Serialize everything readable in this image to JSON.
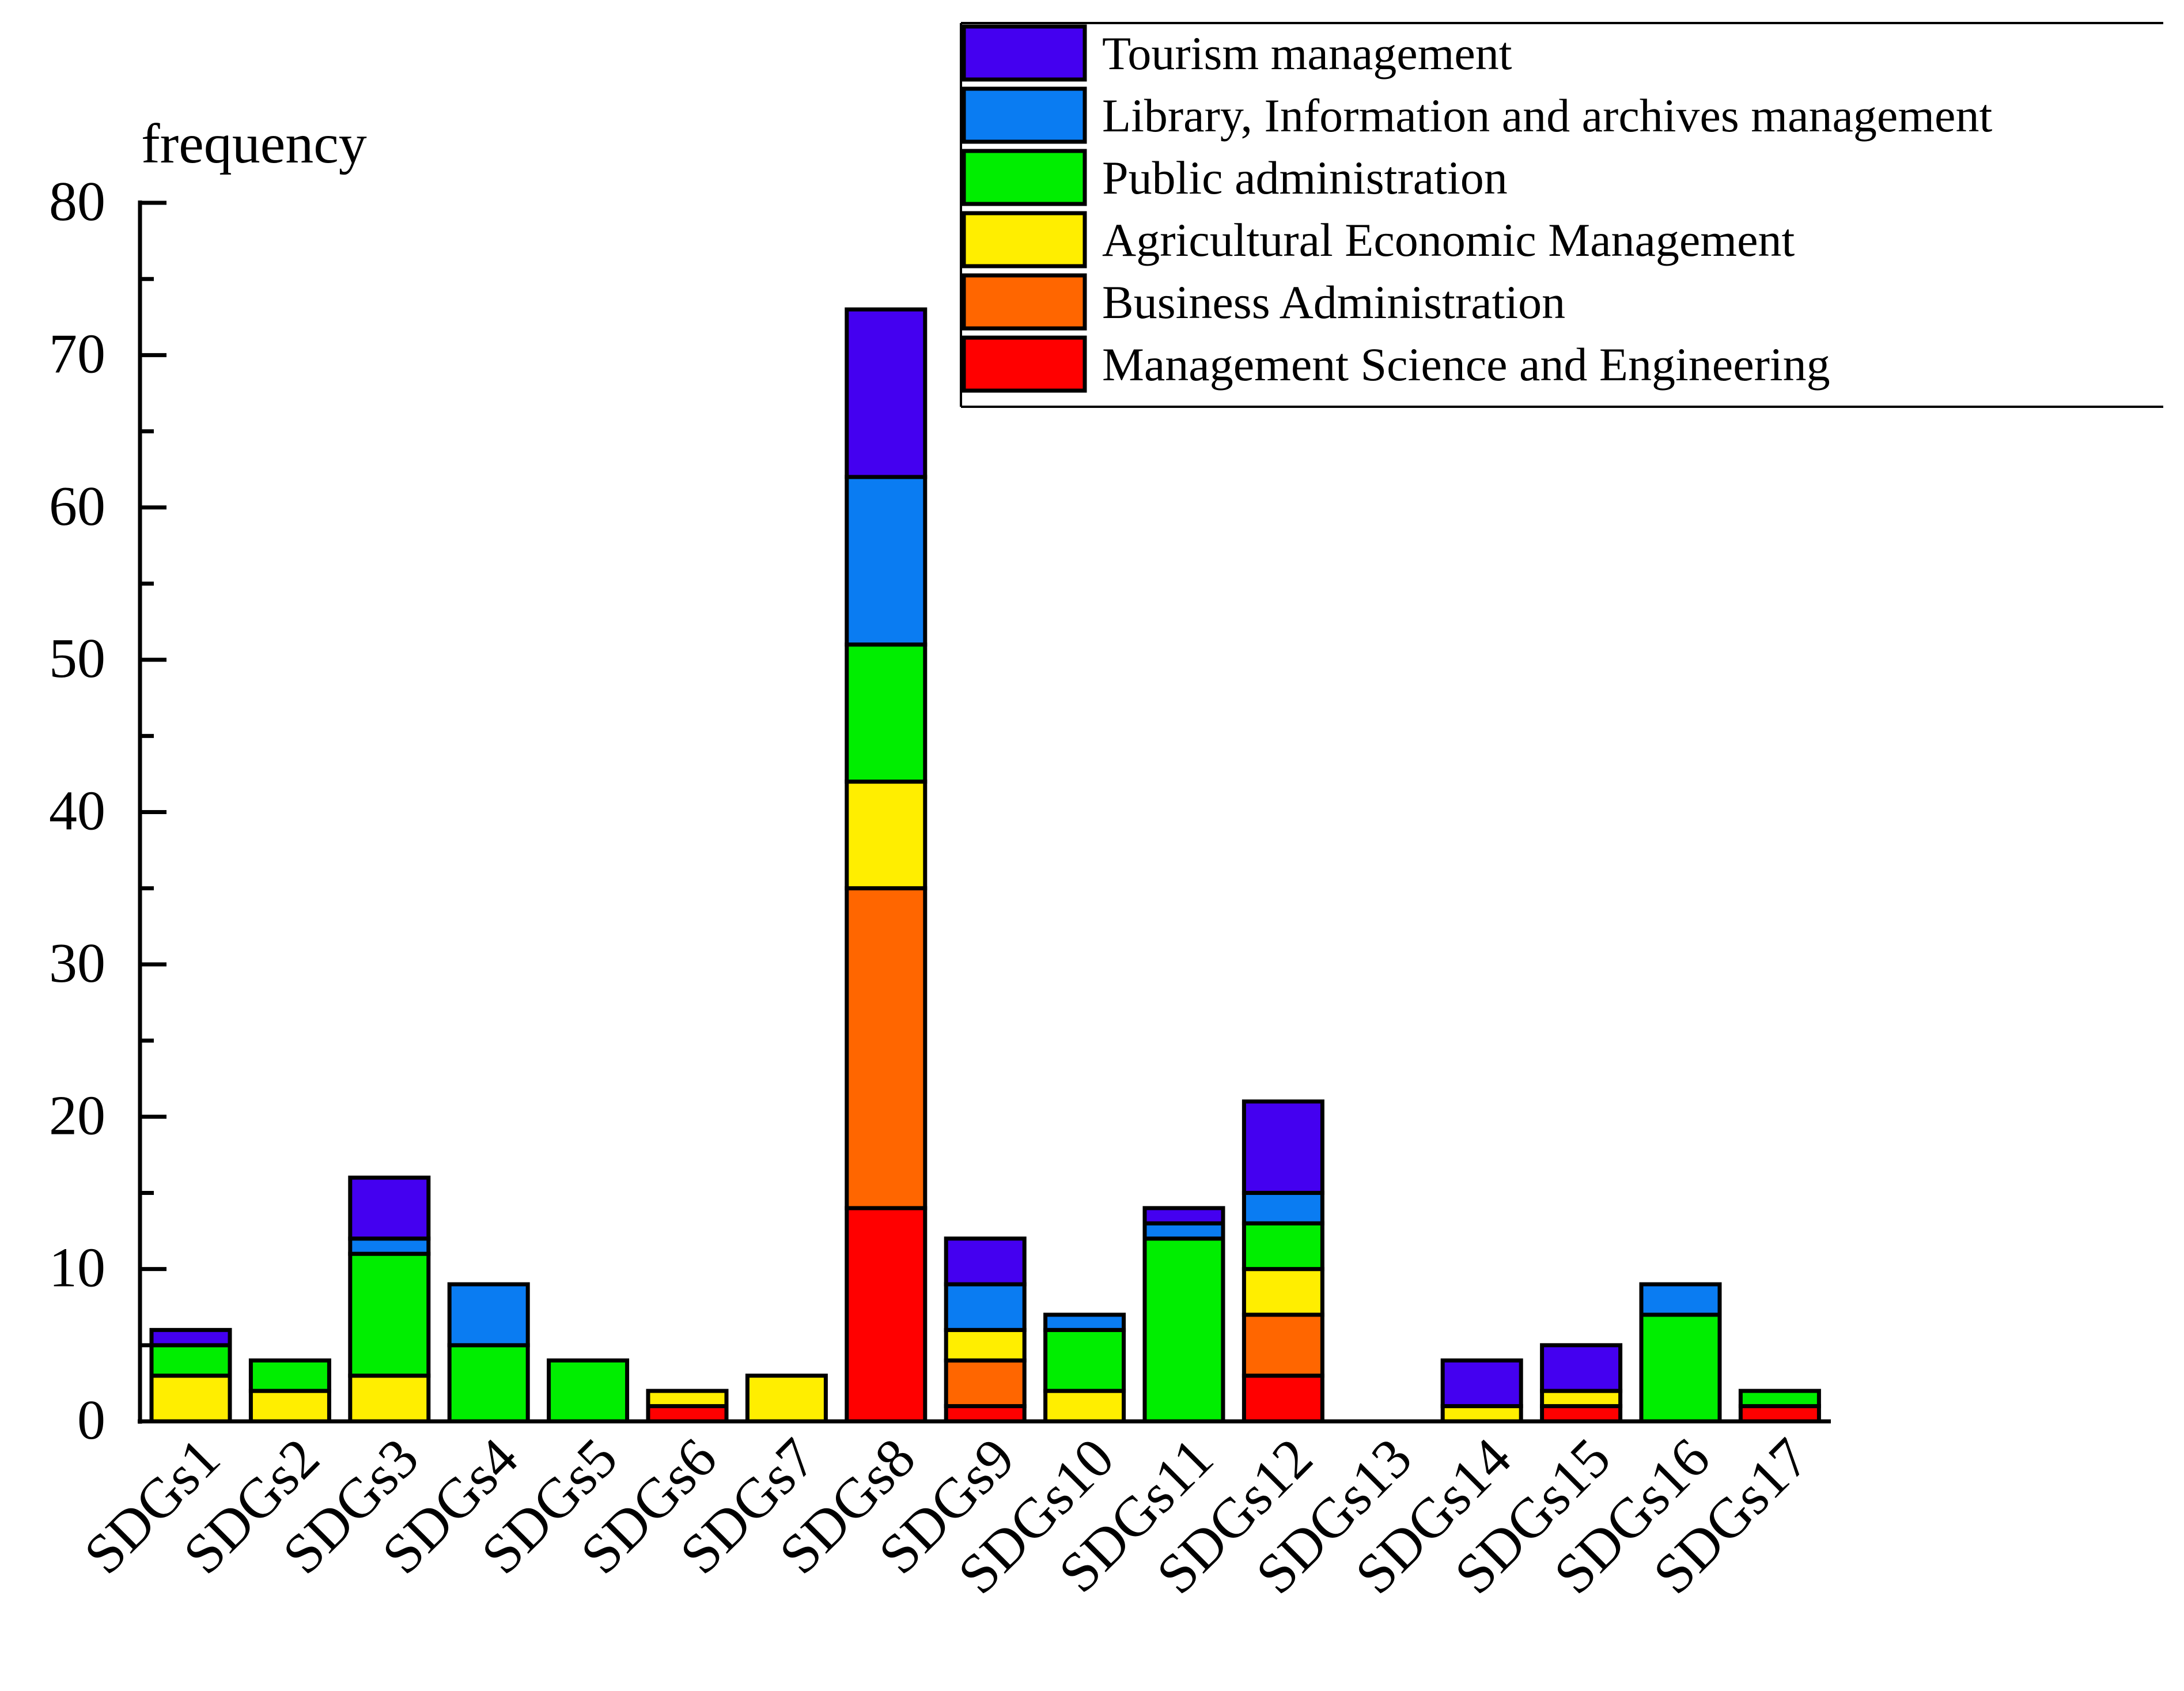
{
  "chart_data": {
    "type": "bar",
    "stacked": true,
    "ylabel": "frequency",
    "xlabel": "",
    "ylim": [
      0,
      80
    ],
    "yticks": [
      0,
      10,
      20,
      30,
      40,
      50,
      60,
      70,
      80
    ],
    "categories": [
      "SDGs1",
      "SDGs2",
      "SDGs3",
      "SDGs4",
      "SDGs5",
      "SDGs6",
      "SDGs7",
      "SDGs8",
      "SDGs9",
      "SDGs10",
      "SDGs11",
      "SDGs12",
      "SDGs13",
      "SDGs14",
      "SDGs15",
      "SDGs16",
      "SDGs17"
    ],
    "series": [
      {
        "name": "Management Science and Engineering",
        "color": "#ff0000",
        "values": [
          0,
          0,
          0,
          0,
          0,
          1,
          0,
          14,
          1,
          0,
          0,
          3,
          0,
          0,
          1,
          0,
          1
        ]
      },
      {
        "name": "Business Administration",
        "color": "#ff6600",
        "values": [
          0,
          0,
          0,
          0,
          0,
          0,
          0,
          21,
          3,
          0,
          0,
          4,
          0,
          0,
          0,
          0,
          0
        ]
      },
      {
        "name": "Agricultural Economic Management",
        "color": "#ffee00",
        "values": [
          3,
          2,
          3,
          0,
          0,
          1,
          3,
          7,
          2,
          2,
          0,
          3,
          0,
          1,
          1,
          0,
          0
        ]
      },
      {
        "name": "Public administration",
        "color": "#00ee00",
        "values": [
          2,
          2,
          8,
          5,
          4,
          0,
          0,
          9,
          0,
          4,
          12,
          3,
          0,
          0,
          0,
          7,
          1
        ]
      },
      {
        "name": "Library, Information and archives management",
        "color": "#0a7cf2",
        "values": [
          0,
          0,
          1,
          4,
          0,
          0,
          0,
          11,
          3,
          1,
          1,
          2,
          0,
          0,
          0,
          2,
          0
        ]
      },
      {
        "name": "Tourism management",
        "color": "#4400f0",
        "values": [
          1,
          0,
          4,
          0,
          0,
          0,
          0,
          11,
          3,
          0,
          1,
          6,
          0,
          3,
          3,
          0,
          0
        ]
      }
    ],
    "legend": {
      "placement": "top-right",
      "entries": [
        "Tourism management",
        "Library, Information and archives management",
        "Public administration",
        "Agricultural Economic Management",
        "Business Administration",
        "Management Science and Engineering"
      ]
    }
  }
}
